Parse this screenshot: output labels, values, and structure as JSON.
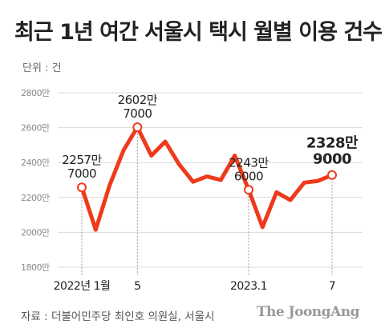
{
  "header": {
    "title": "최근 1년 여간 서울시 택시 월별 이용 건수",
    "unit": "단위 : 건"
  },
  "footer": {
    "source": "자료 : 더불어민주당 최인호 의원실, 서울시",
    "logo": "The JoongAng"
  },
  "colors": {
    "line": "#ee3a1c",
    "grid": "#d9d9d9",
    "tick_text": "#8a8a8a"
  },
  "chart_data": {
    "type": "line",
    "ylim": [
      1800,
      2800
    ],
    "yticks": [
      1800,
      2000,
      2200,
      2400,
      2600,
      2800
    ],
    "ytick_labels": [
      "1800만",
      "2000만",
      "2200만",
      "2400만",
      "2600만",
      "2800만"
    ],
    "x": [
      "2022-01",
      "2022-02",
      "2022-03",
      "2022-04",
      "2022-05",
      "2022-06",
      "2022-07",
      "2022-08",
      "2022-09",
      "2022-10",
      "2022-11",
      "2022-12",
      "2023-01",
      "2023-02",
      "2023-03",
      "2023-04",
      "2023-05",
      "2023-06",
      "2023-07"
    ],
    "series": [
      {
        "values": [
          2257.7,
          2015,
          2270,
          2470,
          2602.7,
          2440,
          2520,
          2390,
          2290,
          2320,
          2300,
          2440,
          2243.6,
          2030,
          2230,
          2185,
          2285,
          2295,
          2328.9
        ]
      }
    ],
    "xtick_labels": [
      {
        "index": 0,
        "label": "2022년 1월"
      },
      {
        "index": 4,
        "label": "5"
      },
      {
        "index": 12,
        "label": "2023.1"
      },
      {
        "index": 18,
        "label": "7"
      }
    ],
    "annotations": [
      {
        "index": 0,
        "line1": "2257만",
        "line2": "7000",
        "bold": false
      },
      {
        "index": 4,
        "line1": "2602만",
        "line2": "7000",
        "bold": false
      },
      {
        "index": 12,
        "line1": "2243만",
        "line2": "6000",
        "bold": false
      },
      {
        "index": 18,
        "line1": "2328만",
        "line2": "9000",
        "bold": true
      }
    ]
  }
}
